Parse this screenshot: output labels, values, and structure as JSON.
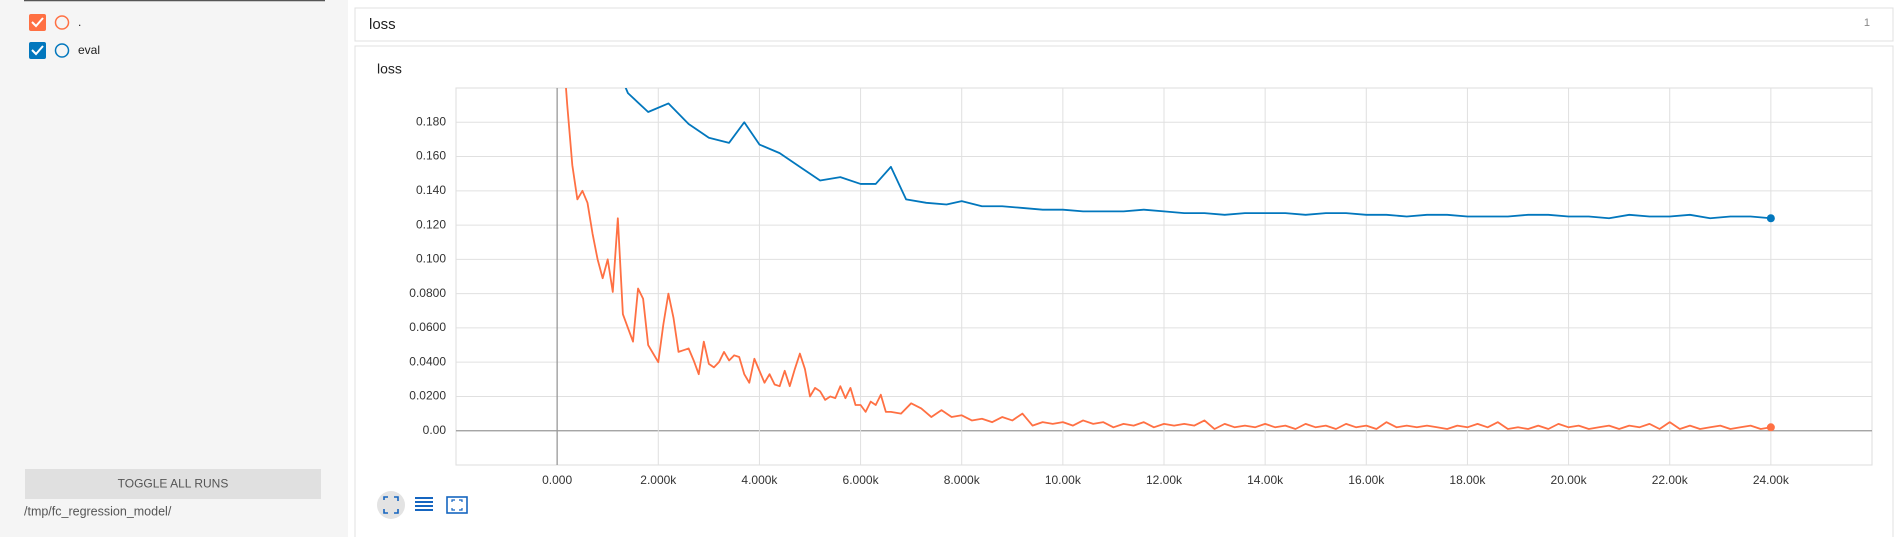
{
  "sidebar": {
    "toggle": "TOGGLE ALL RUNS",
    "path": "/tmp/fc_regression_model/"
  },
  "card": {
    "title": "loss",
    "count": "1"
  },
  "chart_data": {
    "type": "line",
    "title": "loss",
    "xlim": [
      -2000,
      26000
    ],
    "xticks": [
      {
        "value": 0,
        "label": "0.000"
      },
      {
        "value": 2000,
        "label": "2.000k"
      },
      {
        "value": 4000,
        "label": "4.000k"
      },
      {
        "value": 6000,
        "label": "6.000k"
      },
      {
        "value": 8000,
        "label": "8.000k"
      },
      {
        "value": 10000,
        "label": "10.00k"
      },
      {
        "value": 12000,
        "label": "12.00k"
      },
      {
        "value": 14000,
        "label": "14.00k"
      },
      {
        "value": 16000,
        "label": "16.00k"
      },
      {
        "value": 18000,
        "label": "18.00k"
      },
      {
        "value": 20000,
        "label": "20.00k"
      },
      {
        "value": 22000,
        "label": "22.00k"
      },
      {
        "value": 24000,
        "label": "24.00k"
      }
    ],
    "ylim": [
      -0.02,
      0.2
    ],
    "yticks": [
      {
        "value": 0,
        "label": "0.00"
      },
      {
        "value": 0.02,
        "label": "0.0200"
      },
      {
        "value": 0.04,
        "label": "0.0400"
      },
      {
        "value": 0.06,
        "label": "0.0600"
      },
      {
        "value": 0.08,
        "label": "0.0800"
      },
      {
        "value": 0.1,
        "label": "0.100"
      },
      {
        "value": 0.12,
        "label": "0.120"
      },
      {
        "value": 0.14,
        "label": "0.140"
      },
      {
        "value": 0.16,
        "label": "0.160"
      },
      {
        "value": 0.18,
        "label": "0.180"
      }
    ],
    "grid": true,
    "series": [
      {
        "name": ".",
        "color": "#ff7043",
        "x": [
          100,
          200,
          300,
          400,
          500,
          600,
          700,
          800,
          900,
          1000,
          1100,
          1200,
          1300,
          1400,
          1500,
          1600,
          1700,
          1800,
          1900,
          2000,
          2100,
          2200,
          2300,
          2400,
          2500,
          2600,
          2700,
          2800,
          2900,
          3000,
          3100,
          3200,
          3300,
          3400,
          3500,
          3600,
          3700,
          3800,
          3900,
          4000,
          4100,
          4200,
          4300,
          4400,
          4500,
          4600,
          4700,
          4800,
          4900,
          5000,
          5100,
          5200,
          5300,
          5400,
          5500,
          5600,
          5700,
          5800,
          5900,
          6000,
          6100,
          6200,
          6300,
          6400,
          6500,
          6600,
          6800,
          7000,
          7200,
          7400,
          7600,
          7800,
          8000,
          8200,
          8400,
          8600,
          8800,
          9000,
          9200,
          9400,
          9600,
          9800,
          10000,
          10200,
          10400,
          10600,
          10800,
          11000,
          11200,
          11400,
          11600,
          11800,
          12000,
          12200,
          12400,
          12600,
          12800,
          13000,
          13200,
          13400,
          13600,
          13800,
          14000,
          14200,
          14400,
          14600,
          14800,
          15000,
          15200,
          15400,
          15600,
          15800,
          16000,
          16200,
          16400,
          16600,
          16800,
          17000,
          17200,
          17400,
          17600,
          17800,
          18000,
          18200,
          18400,
          18600,
          18800,
          19000,
          19200,
          19400,
          19600,
          19800,
          20000,
          20200,
          20400,
          20600,
          20800,
          21000,
          21200,
          21400,
          21600,
          21800,
          22000,
          22200,
          22400,
          22600,
          22800,
          23000,
          23200,
          23400,
          23600,
          23800,
          24000
        ],
        "values": [
          0.23,
          0.19,
          0.155,
          0.135,
          0.14,
          0.133,
          0.115,
          0.1,
          0.089,
          0.1,
          0.081,
          0.124,
          0.068,
          0.06,
          0.052,
          0.083,
          0.077,
          0.05,
          0.045,
          0.04,
          0.062,
          0.08,
          0.066,
          0.046,
          0.047,
          0.048,
          0.041,
          0.033,
          0.052,
          0.039,
          0.037,
          0.04,
          0.046,
          0.041,
          0.044,
          0.043,
          0.033,
          0.028,
          0.042,
          0.035,
          0.028,
          0.033,
          0.027,
          0.026,
          0.035,
          0.026,
          0.036,
          0.045,
          0.036,
          0.02,
          0.025,
          0.023,
          0.018,
          0.02,
          0.019,
          0.026,
          0.019,
          0.025,
          0.015,
          0.015,
          0.011,
          0.017,
          0.015,
          0.021,
          0.011,
          0.011,
          0.01,
          0.016,
          0.013,
          0.008,
          0.012,
          0.008,
          0.009,
          0.006,
          0.007,
          0.005,
          0.008,
          0.006,
          0.01,
          0.003,
          0.005,
          0.004,
          0.005,
          0.003,
          0.006,
          0.004,
          0.005,
          0.002,
          0.004,
          0.003,
          0.005,
          0.002,
          0.004,
          0.003,
          0.004,
          0.003,
          0.006,
          0.001,
          0.004,
          0.002,
          0.003,
          0.002,
          0.004,
          0.002,
          0.003,
          0.001,
          0.004,
          0.002,
          0.003,
          0.001,
          0.004,
          0.002,
          0.003,
          0.001,
          0.005,
          0.002,
          0.003,
          0.002,
          0.003,
          0.002,
          0.001,
          0.003,
          0.002,
          0.004,
          0.002,
          0.005,
          0.001,
          0.002,
          0.001,
          0.003,
          0.001,
          0.004,
          0.002,
          0.003,
          0.001,
          0.002,
          0.003,
          0.001,
          0.003,
          0.002,
          0.004,
          0.001,
          0.005,
          0.001,
          0.003,
          0.001,
          0.002,
          0.003,
          0.001,
          0.002,
          0.003,
          0.001,
          0.002
        ]
      },
      {
        "name": "eval",
        "color": "#0277bd",
        "x": [
          1000,
          1400,
          1800,
          2200,
          2600,
          3000,
          3400,
          3700,
          4000,
          4400,
          4800,
          5200,
          5600,
          6000,
          6300,
          6600,
          6900,
          7300,
          7700,
          8000,
          8400,
          8800,
          9200,
          9600,
          10000,
          10400,
          10800,
          11200,
          11600,
          12000,
          12400,
          12800,
          13200,
          13600,
          14000,
          14400,
          14800,
          15200,
          15600,
          16000,
          16400,
          16800,
          17200,
          17600,
          18000,
          18400,
          18800,
          19200,
          19600,
          20000,
          20400,
          20800,
          21200,
          21600,
          22000,
          22400,
          22800,
          23200,
          23600,
          24000
        ],
        "values": [
          0.225,
          0.197,
          0.186,
          0.191,
          0.179,
          0.171,
          0.168,
          0.18,
          0.167,
          0.162,
          0.154,
          0.146,
          0.148,
          0.144,
          0.144,
          0.154,
          0.135,
          0.133,
          0.132,
          0.134,
          0.131,
          0.131,
          0.13,
          0.129,
          0.129,
          0.128,
          0.128,
          0.128,
          0.129,
          0.128,
          0.127,
          0.127,
          0.126,
          0.127,
          0.127,
          0.127,
          0.126,
          0.127,
          0.127,
          0.126,
          0.126,
          0.125,
          0.126,
          0.126,
          0.125,
          0.125,
          0.125,
          0.126,
          0.126,
          0.125,
          0.125,
          0.124,
          0.126,
          0.125,
          0.125,
          0.126,
          0.124,
          0.125,
          0.125,
          0.124
        ]
      }
    ]
  }
}
